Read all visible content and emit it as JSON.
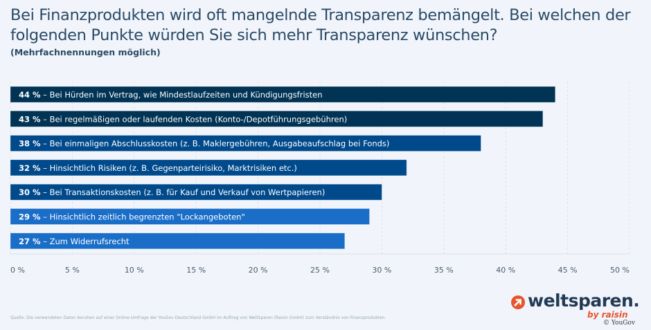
{
  "header": {
    "title": "Bei Finanzprodukten wird oft mangelnde Transparenz bemängelt. Bei welchen der folgenden Punkte würden Sie sich mehr Transparenz wünschen?",
    "subtitle": "(Mehrfachnennungen möglich)"
  },
  "chart_data": {
    "type": "bar",
    "orientation": "horizontal",
    "title": "Bei Finanzprodukten wird oft mangelnde Transparenz bemängelt. Bei welchen der folgenden Punkte würden Sie sich mehr Transparenz wünschen?",
    "subtitle": "(Mehrfachnennungen möglich)",
    "categories": [
      "Bei Hürden im Vertrag, wie Mindestlaufzeiten und Kündigungsfristen",
      "Bei regelmäßigen oder laufenden Kosten (Konto-/Depotführungsgebühren)",
      "Bei einmaligen Abschlusskosten (z. B. Maklergebühren, Ausgabeaufschlag bei Fonds)",
      "Hinsichtlich Risiken (z. B. Gegenparteirisiko, Marktrisiken etc.)",
      "Bei Transaktionskosten (z. B. für Kauf und Verkauf von Wertpapieren)",
      "Hinsichtlich zeitlich begrenzten \"Lockangeboten\"",
      "Zum Widerrufsrecht"
    ],
    "values": [
      44,
      43,
      38,
      32,
      30,
      29,
      27
    ],
    "value_labels": [
      "44 %",
      "43 %",
      "38 %",
      "32 %",
      "30 %",
      "29 %",
      "27 %"
    ],
    "bar_colors": [
      "#003354",
      "#003354",
      "#004a8c",
      "#004a8c",
      "#004a8c",
      "#1a6ec8",
      "#1a6ec8"
    ],
    "xlabel": "",
    "ylabel": "",
    "xlim": [
      0,
      50
    ],
    "x_ticks": [
      0,
      5,
      10,
      15,
      20,
      25,
      30,
      35,
      40,
      45,
      50
    ],
    "x_tick_labels": [
      "0 %",
      "5 %",
      "10 %",
      "15 %",
      "20 %",
      "25 %",
      "30 %",
      "35 %",
      "40 %",
      "45 %",
      "50 %"
    ],
    "grid": true,
    "legend": "none"
  },
  "footer": {
    "source": "Quelle: Die verwendeten Daten beruhen auf einer Online-Umfrage der YouGov Deutschland GmbH im Auftrag von WeltSparen (Raisin GmbH) zum Verständnis von Finanzprodukten.",
    "logo_word": "weltsparen.",
    "logo_by": "by raisin",
    "logo_icon": "arrow-up-right-circle-icon",
    "copyright": "© YouGov"
  },
  "colors": {
    "background": "#f1f5fb",
    "title": "#2a4a66",
    "accent": "#e8542c",
    "logo_text": "#233a55"
  }
}
